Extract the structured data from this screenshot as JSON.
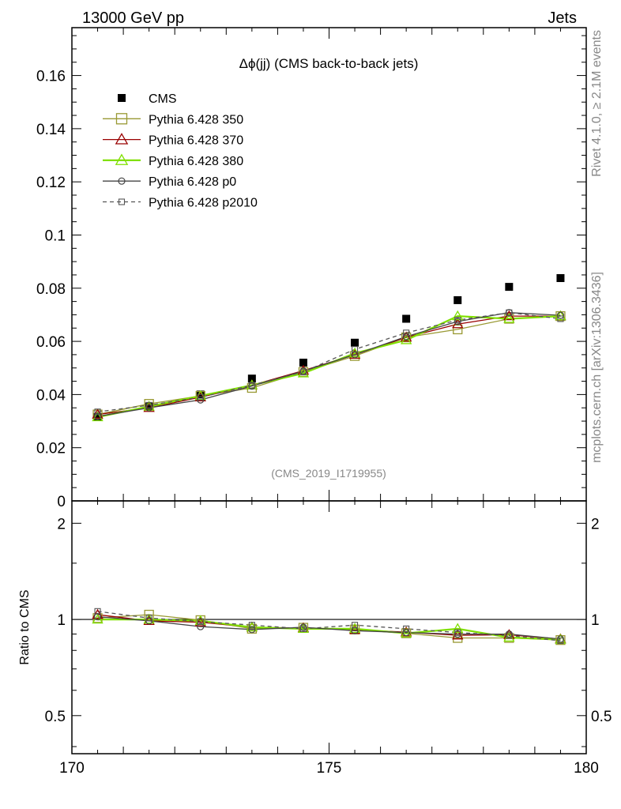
{
  "header": {
    "left": "13000 GeV pp",
    "right": "Jets"
  },
  "side": {
    "rivet": "Rivet 4.1.0, ≥ 2.1M events",
    "mcplots": "mcplots.cern.ch [arXiv:1306.3436]"
  },
  "chart_data": [
    {
      "type": "scatter",
      "title": "Δϕ(jj) (CMS back-to-back jets)",
      "analysis_tag": "(CMS_2019_I1719955)",
      "xlabel": "",
      "ylabel": "",
      "xlim": [
        170,
        180
      ],
      "ylim": [
        0,
        0.178
      ],
      "yticks": [
        0,
        0.02,
        0.04,
        0.06,
        0.08,
        0.1,
        0.12,
        0.14,
        0.16
      ],
      "ytick_labels": [
        "0",
        "0.02",
        "0.04",
        "0.06",
        "0.08",
        "0.1",
        "0.12",
        "0.14",
        "0.16"
      ],
      "x": [
        170.5,
        171.5,
        172.5,
        173.5,
        174.5,
        175.5,
        176.5,
        177.5,
        178.5,
        179.5
      ],
      "legend": [
        "CMS",
        "Pythia 6.428 350",
        "Pythia 6.428 370",
        "Pythia 6.428 380",
        "Pythia 6.428 p0",
        "Pythia 6.428 p2010"
      ],
      "series": [
        {
          "name": "CMS",
          "style": "data",
          "color": "#000000",
          "values": [
            0.0315,
            0.0355,
            0.04,
            0.046,
            0.052,
            0.0595,
            0.0685,
            0.0755,
            0.0805,
            0.0838
          ]
        },
        {
          "name": "Pythia 6.428 350",
          "style": "open-square",
          "color": "#999933",
          "values": [
            0.0325,
            0.0365,
            0.0395,
            0.0425,
            0.0485,
            0.0545,
            0.0615,
            0.0645,
            0.0685,
            0.0695
          ]
        },
        {
          "name": "Pythia 6.428 370",
          "style": "open-triangle",
          "color": "#990000",
          "values": [
            0.0325,
            0.035,
            0.039,
            0.0435,
            0.049,
            0.055,
            0.0615,
            0.0665,
            0.0695,
            0.0695
          ]
        },
        {
          "name": "Pythia 6.428 380",
          "style": "open-triangle-green",
          "color": "#80e000",
          "values": [
            0.0315,
            0.0355,
            0.0395,
            0.0435,
            0.048,
            0.0555,
            0.0605,
            0.0695,
            0.0685,
            0.0695
          ]
        },
        {
          "name": "Pythia 6.428 p0",
          "style": "open-circle",
          "color": "#444444",
          "values": [
            0.0318,
            0.035,
            0.038,
            0.0432,
            0.0488,
            0.055,
            0.0618,
            0.0675,
            0.0708,
            0.0698
          ]
        },
        {
          "name": "Pythia 6.428 p2010",
          "style": "dashed-square",
          "color": "#555555",
          "values": [
            0.0335,
            0.036,
            0.039,
            0.0435,
            0.0485,
            0.057,
            0.0632,
            0.068,
            0.0708,
            0.0685
          ]
        }
      ]
    },
    {
      "type": "line",
      "title": "",
      "xlabel": "",
      "ylabel": "Ratio to CMS",
      "yscale": "log",
      "xlim": [
        170,
        180
      ],
      "ylim": [
        0.38,
        2.35
      ],
      "xticks": [
        170,
        175,
        180
      ],
      "xtick_labels": [
        "170",
        "175",
        "180"
      ],
      "yticks": [
        0.5,
        1,
        2
      ],
      "ytick_labels": [
        "0.5",
        "1",
        "2"
      ],
      "x": [
        170.5,
        171.5,
        172.5,
        173.5,
        174.5,
        175.5,
        176.5,
        177.5,
        178.5,
        179.5
      ],
      "series": [
        {
          "name": "Pythia 6.428 350",
          "values": [
            1.01,
            1.035,
            0.995,
            0.935,
            0.942,
            0.93,
            0.905,
            0.875,
            0.875,
            0.862
          ]
        },
        {
          "name": "Pythia 6.428 370",
          "values": [
            1.035,
            0.99,
            0.98,
            0.945,
            0.94,
            0.928,
            0.912,
            0.892,
            0.895,
            0.868
          ]
        },
        {
          "name": "Pythia 6.428 380",
          "values": [
            1.0,
            1.0,
            0.99,
            0.945,
            0.935,
            0.935,
            0.905,
            0.935,
            0.878,
            0.865
          ]
        },
        {
          "name": "Pythia 6.428 p0",
          "values": [
            1.02,
            0.99,
            0.95,
            0.93,
            0.945,
            0.922,
            0.91,
            0.9,
            0.9,
            0.868
          ]
        },
        {
          "name": "Pythia 6.428 p2010",
          "values": [
            1.06,
            1.01,
            0.985,
            0.96,
            0.935,
            0.96,
            0.935,
            0.91,
            0.89,
            0.858
          ]
        }
      ]
    }
  ]
}
